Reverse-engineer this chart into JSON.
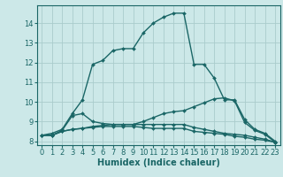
{
  "bg_color": "#cce8e8",
  "grid_color": "#aacccc",
  "line_color": "#1a6666",
  "xlabel": "Humidex (Indice chaleur)",
  "xlabel_fontsize": 7.0,
  "tick_fontsize": 6.0,
  "ylim": [
    7.8,
    14.9
  ],
  "xlim": [
    -0.5,
    23.5
  ],
  "yticks": [
    8,
    9,
    10,
    11,
    12,
    13,
    14
  ],
  "xticks": [
    0,
    1,
    2,
    3,
    4,
    5,
    6,
    7,
    8,
    9,
    10,
    11,
    12,
    13,
    14,
    15,
    16,
    17,
    18,
    19,
    20,
    21,
    22,
    23
  ],
  "series": [
    {
      "x": [
        0,
        1,
        2,
        3,
        4,
        5,
        6,
        7,
        8,
        9,
        10,
        11,
        12,
        13,
        14,
        15,
        16,
        17,
        18,
        19,
        20,
        21,
        22,
        23
      ],
      "y": [
        8.3,
        8.4,
        8.6,
        9.4,
        10.1,
        11.9,
        12.1,
        12.6,
        12.7,
        12.7,
        13.5,
        14.0,
        14.3,
        14.5,
        14.5,
        11.9,
        11.9,
        11.2,
        10.1,
        10.1,
        9.1,
        8.6,
        8.4,
        8.0
      ],
      "marker": "D",
      "markersize": 2.0,
      "linewidth": 1.0
    },
    {
      "x": [
        0,
        1,
        2,
        3,
        4,
        5,
        6,
        7,
        8,
        9,
        10,
        11,
        12,
        13,
        14,
        15,
        16,
        17,
        18,
        19,
        20,
        21,
        22,
        23
      ],
      "y": [
        8.3,
        8.3,
        8.55,
        9.3,
        9.4,
        9.0,
        8.9,
        8.85,
        8.85,
        8.85,
        9.0,
        9.2,
        9.4,
        9.5,
        9.55,
        9.75,
        9.95,
        10.15,
        10.2,
        10.05,
        8.95,
        8.55,
        8.35,
        7.95
      ],
      "marker": "D",
      "markersize": 2.0,
      "linewidth": 1.0
    },
    {
      "x": [
        0,
        1,
        2,
        3,
        4,
        5,
        6,
        7,
        8,
        9,
        10,
        11,
        12,
        13,
        14,
        15,
        16,
        17,
        18,
        19,
        20,
        21,
        22,
        23
      ],
      "y": [
        8.3,
        8.3,
        8.5,
        8.6,
        8.65,
        8.7,
        8.75,
        8.75,
        8.75,
        8.75,
        8.7,
        8.65,
        8.65,
        8.65,
        8.65,
        8.5,
        8.45,
        8.4,
        8.35,
        8.25,
        8.2,
        8.1,
        8.05,
        7.95
      ],
      "marker": "D",
      "markersize": 2.0,
      "linewidth": 1.0
    },
    {
      "x": [
        0,
        1,
        2,
        3,
        4,
        5,
        6,
        7,
        8,
        9,
        10,
        11,
        12,
        13,
        14,
        15,
        16,
        17,
        18,
        19,
        20,
        21,
        22,
        23
      ],
      "y": [
        8.3,
        8.3,
        8.5,
        8.6,
        8.65,
        8.75,
        8.8,
        8.85,
        8.85,
        8.85,
        8.85,
        8.85,
        8.85,
        8.85,
        8.85,
        8.7,
        8.6,
        8.5,
        8.4,
        8.35,
        8.3,
        8.2,
        8.1,
        7.95
      ],
      "marker": "D",
      "markersize": 2.0,
      "linewidth": 1.0
    }
  ]
}
